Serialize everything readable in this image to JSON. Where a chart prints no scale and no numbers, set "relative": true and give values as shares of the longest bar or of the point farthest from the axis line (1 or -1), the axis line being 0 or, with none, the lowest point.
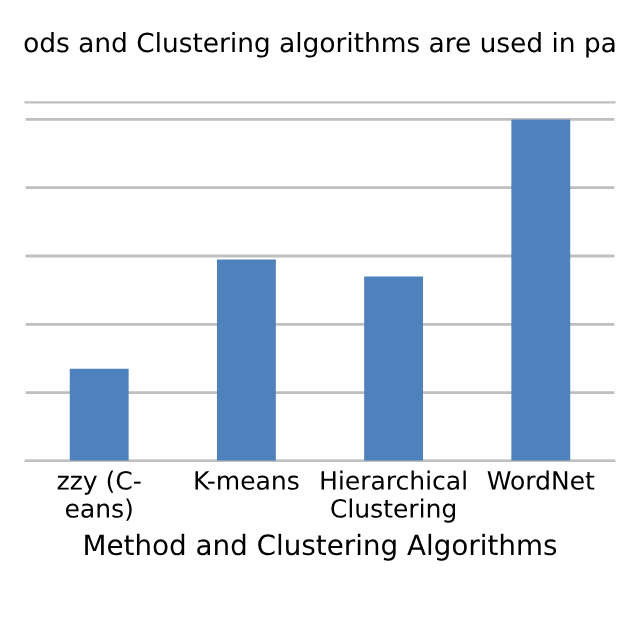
{
  "chart_data": {
    "type": "bar",
    "title": "ods and Clustering algorithms are used in pa",
    "xlabel": "Method and Clustering Algorithms",
    "categories": [
      "zzy (C-\neans)",
      "K-means",
      "Hierarchical\nClustering",
      "WordNet"
    ],
    "values": [
      0.27,
      0.59,
      0.54,
      1
    ],
    "color": "#4f81bd",
    "relative": true,
    "grid": "y",
    "legend": false
  }
}
